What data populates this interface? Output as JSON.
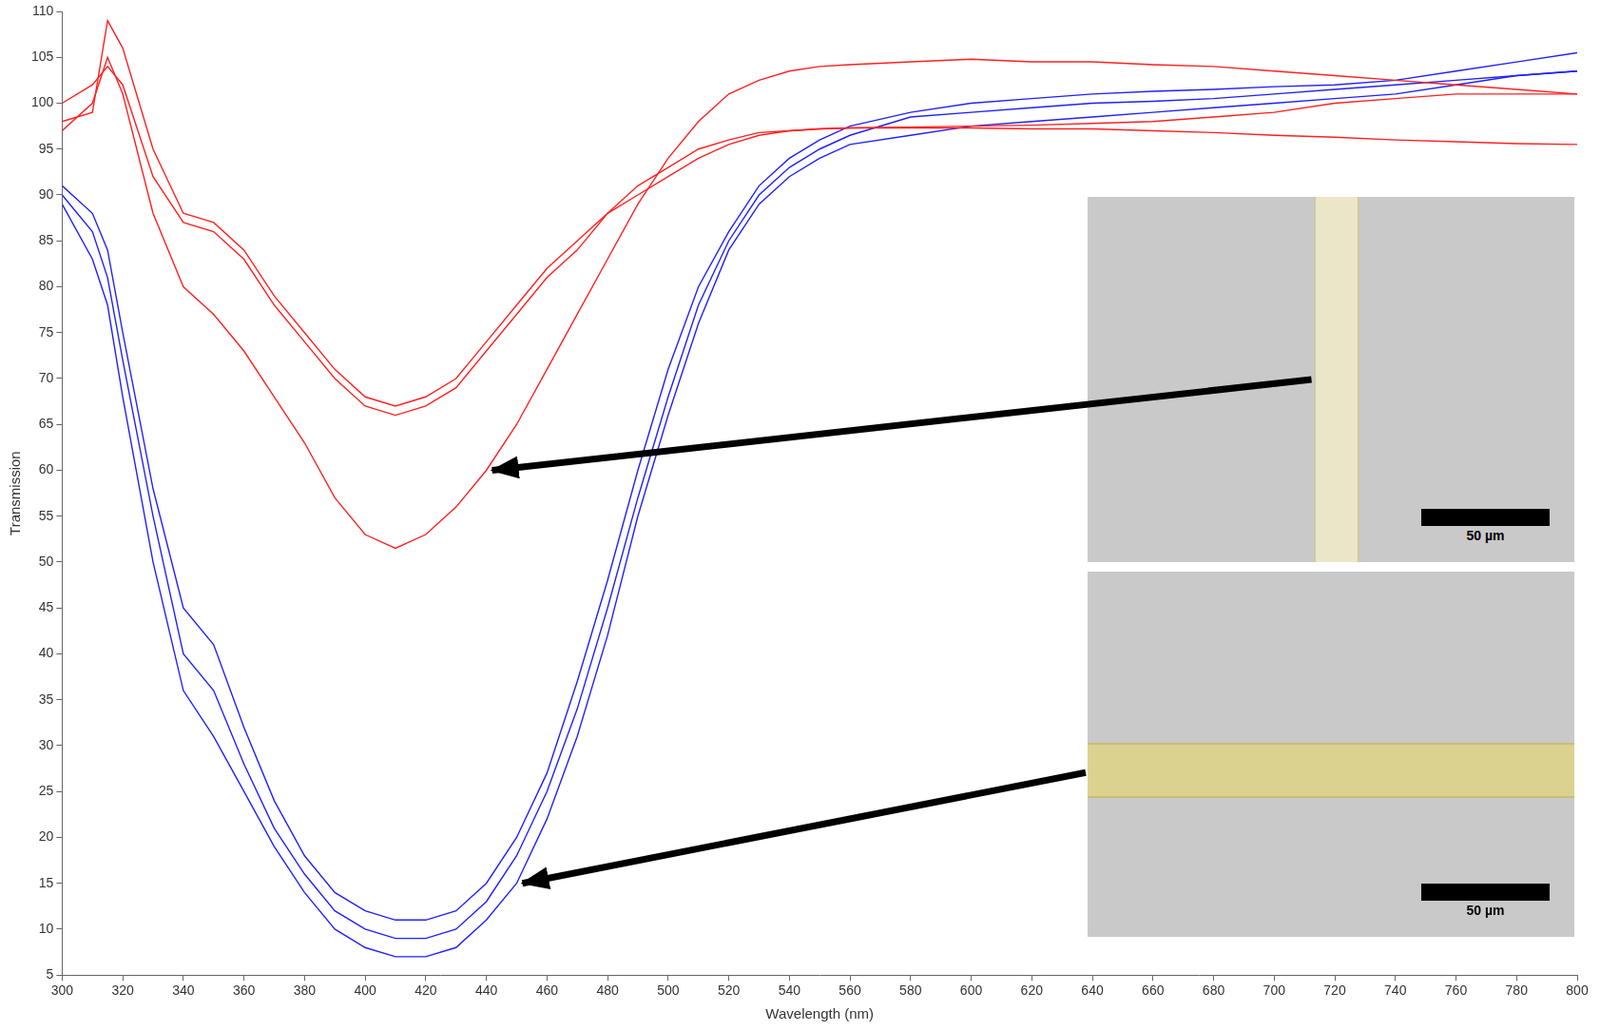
{
  "chart_data": {
    "type": "line",
    "x_label": "Wavelength (nm)",
    "y_label": "Transmission",
    "x": [
      300,
      310,
      315,
      320,
      330,
      340,
      350,
      360,
      370,
      380,
      390,
      400,
      410,
      420,
      430,
      440,
      450,
      460,
      470,
      480,
      490,
      500,
      510,
      520,
      530,
      540,
      550,
      560,
      580,
      600,
      620,
      640,
      660,
      680,
      700,
      720,
      740,
      760,
      780,
      800
    ],
    "series": [
      {
        "color": "#ff2020",
        "values": [
          97,
          100,
          105,
          101,
          88,
          80,
          77,
          73,
          68,
          63,
          57,
          53,
          51.5,
          53,
          56,
          60,
          65,
          71,
          77,
          83,
          89,
          94,
          98,
          101,
          102.5,
          103.5,
          104,
          104.2,
          104.5,
          104.8,
          104.5,
          104.5,
          104.2,
          104,
          103.5,
          103,
          102.5,
          102,
          101.5,
          101
        ]
      },
      {
        "color": "#ff2020",
        "values": [
          98,
          99,
          109,
          106,
          95,
          88,
          87,
          84,
          79,
          75,
          71,
          68,
          67,
          68,
          70,
          74,
          78,
          82,
          85,
          88,
          91,
          93,
          95,
          96,
          96.8,
          97,
          97.2,
          97.3,
          97.3,
          97.3,
          97.2,
          97.2,
          97,
          96.8,
          96.5,
          96.3,
          96,
          95.8,
          95.6,
          95.5
        ]
      },
      {
        "color": "#ff2020",
        "values": [
          100,
          102,
          104,
          102,
          92,
          87,
          86,
          83,
          78,
          74,
          70,
          67,
          66,
          67,
          69,
          73,
          77,
          81,
          84,
          88,
          90,
          92,
          94,
          95.5,
          96.5,
          97,
          97.2,
          97.3,
          97.4,
          97.5,
          97.6,
          97.8,
          98,
          98.5,
          99,
          100,
          100.5,
          101,
          101,
          101
        ]
      },
      {
        "color": "#2020ff",
        "values": [
          91,
          88,
          84,
          75,
          58,
          45,
          41,
          32,
          24,
          18,
          14,
          12,
          11,
          11,
          12,
          15,
          20,
          27,
          37,
          48,
          60,
          71,
          80,
          86,
          91,
          94,
          96,
          97.5,
          99,
          100,
          100.5,
          101,
          101.3,
          101.5,
          101.8,
          102,
          102.5,
          103.5,
          104.5,
          105.5
        ]
      },
      {
        "color": "#2020ff",
        "values": [
          90,
          86,
          81,
          72,
          55,
          40,
          36,
          28,
          21,
          16,
          12,
          10,
          9,
          9,
          10,
          13,
          18,
          25,
          34,
          45,
          57,
          68,
          78,
          85,
          90,
          93,
          95,
          96.5,
          98.5,
          99,
          99.5,
          100,
          100.2,
          100.5,
          101,
          101.5,
          102,
          102.5,
          103,
          103.5
        ]
      },
      {
        "color": "#2020ff",
        "values": [
          89,
          83,
          78,
          68,
          50,
          36,
          31,
          25,
          19,
          14,
          10,
          8,
          7,
          7,
          8,
          11,
          15,
          22,
          31,
          42,
          55,
          66,
          76,
          84,
          89,
          92,
          94,
          95.5,
          96.5,
          97.5,
          98,
          98.5,
          99,
          99.5,
          100,
          100.5,
          101,
          102,
          103,
          103.5
        ]
      }
    ],
    "xlim": [
      300,
      800
    ],
    "xticks": [
      300,
      320,
      340,
      360,
      380,
      400,
      420,
      440,
      460,
      480,
      500,
      520,
      540,
      560,
      580,
      600,
      620,
      640,
      660,
      680,
      700,
      720,
      740,
      760,
      780,
      800
    ],
    "ylim": [
      5,
      110
    ],
    "yticks": [
      5,
      10,
      15,
      20,
      25,
      30,
      35,
      40,
      45,
      50,
      55,
      60,
      65,
      70,
      75,
      80,
      85,
      90,
      95,
      100,
      105,
      110
    ],
    "grid": false,
    "insets": [
      {
        "scale_bar_label": "50 µm"
      },
      {
        "scale_bar_label": "50 µm"
      }
    ]
  }
}
